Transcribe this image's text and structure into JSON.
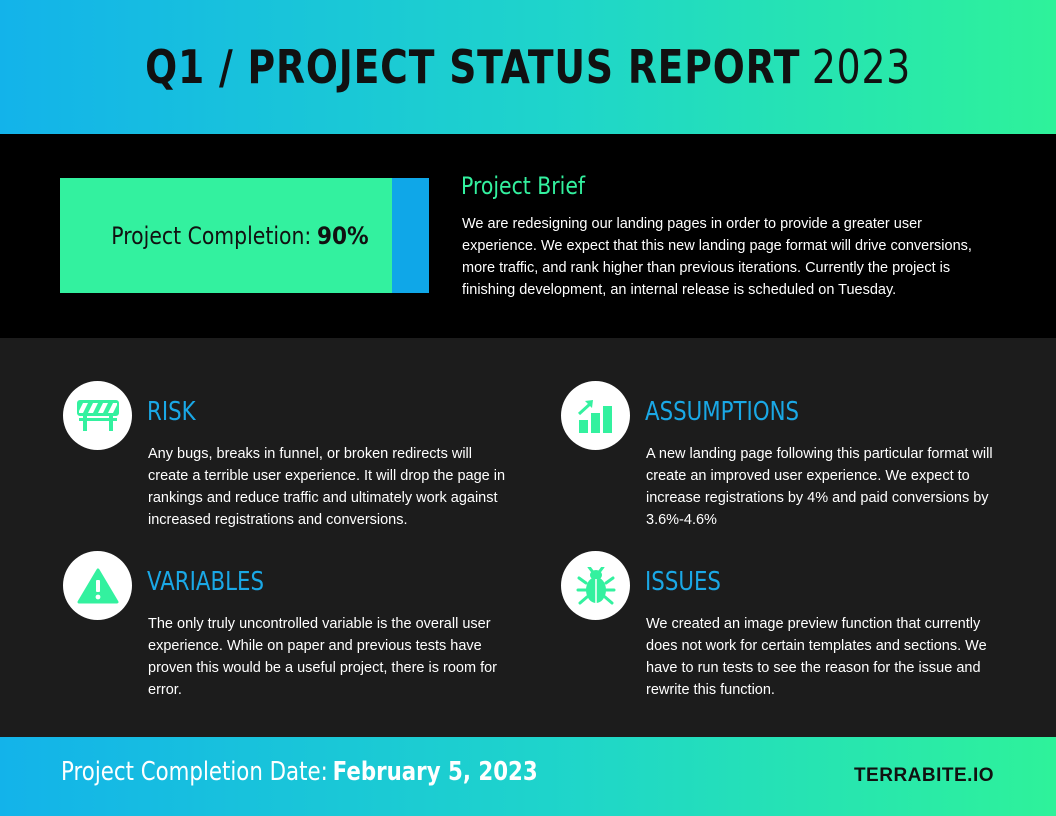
{
  "header": {
    "title_bold": "Q1 / PROJECT STATUS REPORT",
    "title_year": "2023"
  },
  "completion": {
    "label": "Project Completion:",
    "value_text": "90%",
    "percent": 90
  },
  "brief": {
    "title": "Project Brief",
    "text": "We are redesigning our landing pages in order to provide a greater user experience. We expect that this new landing page format will drive conversions, more traffic, and rank higher than previous iterations. Currently the project is finishing development, an internal release is scheduled on Tuesday."
  },
  "sections": {
    "risk": {
      "title": "RISK",
      "icon": "barrier-icon",
      "text": "Any bugs, breaks in funnel, or broken redirects will create a terrible user experience. It will drop the page in rankings and reduce traffic and ultimately work against increased registrations and conversions."
    },
    "assumptions": {
      "title": "ASSUMPTIONS",
      "icon": "growth-chart-icon",
      "text": "A new landing page following this particular format will create an improved user experience. We expect to increase registrations by 4% and paid conversions by 3.6%-4.6%"
    },
    "variables": {
      "title": "VARIABLES",
      "icon": "warning-icon",
      "text": "The only truly uncontrolled variable is the overall user experience. While on paper and previous tests have proven this would be a useful project, there is room for error."
    },
    "issues": {
      "title": "ISSUES",
      "icon": "bug-icon",
      "text": "We created an image preview function that currently does not work for certain templates and sections. We have to run tests to see the reason for the issue and rewrite this function."
    }
  },
  "footer": {
    "date_label": "Project Completion Date:",
    "date_value": "February 5, 2023",
    "brand": "TERRABITE.IO"
  },
  "colors": {
    "accent_green": "#33f19f",
    "accent_blue": "#1aa8e6",
    "dark_panel": "#1c1c1c"
  }
}
